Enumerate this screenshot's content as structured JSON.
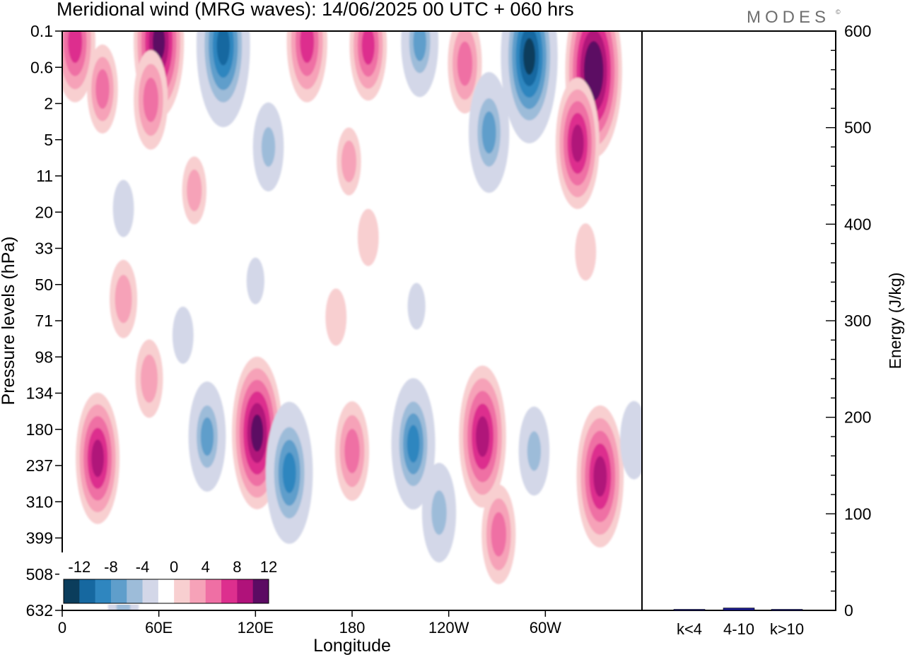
{
  "title": "Meridional wind (MRG waves):  14/06/2025  00 UTC  + 060 hrs",
  "logo": "MODES",
  "logo_mark": "©",
  "colors": {
    "neg_levels": [
      "#0b3d5c",
      "#1668a0",
      "#2f86bf",
      "#5f9ecb",
      "#9dbcd9",
      "#d3d7e8"
    ],
    "pos_levels": [
      "#f8cfd0",
      "#f6a2b8",
      "#ef6fa4",
      "#dd2f8e",
      "#b0127a",
      "#5c0b63"
    ],
    "zero": "#ffffff",
    "energy_bar": "#1a1a8c"
  },
  "chart_data": [
    {
      "type": "heatmap",
      "title": "Meridional wind (MRG waves):  14/06/2025  00 UTC  + 060 hrs",
      "xlabel": "Longitude",
      "ylabel": "Pressure levels (hPa)",
      "x_ticks": [
        "0",
        "60E",
        "120E",
        "180",
        "120W",
        "60W"
      ],
      "x_tick_values": [
        0,
        60,
        120,
        180,
        240,
        300
      ],
      "xlim": [
        0,
        360
      ],
      "y_ticks": [
        "0.1",
        "0.6",
        "2",
        "5",
        "11",
        "20",
        "33",
        "50",
        "71",
        "98",
        "134",
        "180",
        "237",
        "310",
        "399",
        "508",
        "632"
      ],
      "y_order": "top-to-bottom",
      "colorbar": {
        "labels": [
          "-12",
          "-8",
          "-4",
          "0",
          "4",
          "8",
          "12"
        ],
        "levels": [
          -14,
          -12,
          -10,
          -8,
          -6,
          -4,
          -2,
          2,
          4,
          6,
          8,
          10,
          12,
          14
        ],
        "position": "bottom-left"
      },
      "cells": [
        {
          "lon": 8,
          "lev": 0.3,
          "v": 9
        },
        {
          "lon": 60,
          "lev": 0.3,
          "v": 12
        },
        {
          "lon": 100,
          "lev": 0.4,
          "v": -13
        },
        {
          "lon": 152,
          "lev": 0.3,
          "v": 9
        },
        {
          "lon": 190,
          "lev": 0.4,
          "v": 8
        },
        {
          "lon": 222,
          "lev": 0.3,
          "v": -8
        },
        {
          "lon": 250,
          "lev": 0.9,
          "v": 7
        },
        {
          "lon": 290,
          "lev": 0.7,
          "v": -14
        },
        {
          "lon": 330,
          "lev": 1.1,
          "v": 14
        },
        {
          "lon": 25,
          "lev": 1.6,
          "v": 6
        },
        {
          "lon": 55,
          "lev": 1.9,
          "v": 7
        },
        {
          "lon": 128,
          "lev": 3.2,
          "v": -6
        },
        {
          "lon": 178,
          "lev": 3.6,
          "v": 4
        },
        {
          "lon": 265,
          "lev": 2.8,
          "v": -9
        },
        {
          "lon": 320,
          "lev": 3.1,
          "v": 10
        },
        {
          "lon": 38,
          "lev": 4.9,
          "v": -3
        },
        {
          "lon": 82,
          "lev": 4.4,
          "v": 4
        },
        {
          "lon": 120,
          "lev": 6.9,
          "v": -2
        },
        {
          "lon": 190,
          "lev": 5.7,
          "v": 3
        },
        {
          "lon": 325,
          "lev": 6.1,
          "v": 3
        },
        {
          "lon": 38,
          "lev": 7.4,
          "v": 5
        },
        {
          "lon": 75,
          "lev": 8.4,
          "v": -3
        },
        {
          "lon": 170,
          "lev": 7.9,
          "v": 3
        },
        {
          "lon": 220,
          "lev": 7.6,
          "v": -2
        },
        {
          "lon": 22,
          "lev": 11.8,
          "v": 10
        },
        {
          "lon": 54,
          "lev": 9.6,
          "v": 5
        },
        {
          "lon": 90,
          "lev": 11.2,
          "v": -8
        },
        {
          "lon": 121,
          "lev": 11.1,
          "v": 12
        },
        {
          "lon": 141,
          "lev": 12.2,
          "v": -11
        },
        {
          "lon": 180,
          "lev": 11.6,
          "v": 7
        },
        {
          "lon": 218,
          "lev": 11.4,
          "v": -10
        },
        {
          "lon": 234,
          "lev": 13.3,
          "v": -7
        },
        {
          "lon": 261,
          "lev": 11.2,
          "v": 11
        },
        {
          "lon": 271,
          "lev": 13.9,
          "v": 7
        },
        {
          "lon": 293,
          "lev": 11.6,
          "v": -6
        },
        {
          "lon": 334,
          "lev": 12.3,
          "v": 11
        },
        {
          "lon": 355,
          "lev": 11.3,
          "v": -5
        },
        {
          "lon": 38,
          "lev": 15.9,
          "v": -6
        }
      ]
    },
    {
      "type": "bar",
      "categories": [
        "k<4",
        "4-10",
        "k>10"
      ],
      "values": [
        0.3,
        2.5,
        0.2
      ],
      "ylabel": "Energy (J/kg)",
      "ylim": [
        0,
        600
      ],
      "y_ticks": [
        "0",
        "100",
        "200",
        "300",
        "400",
        "500",
        "600"
      ]
    }
  ]
}
